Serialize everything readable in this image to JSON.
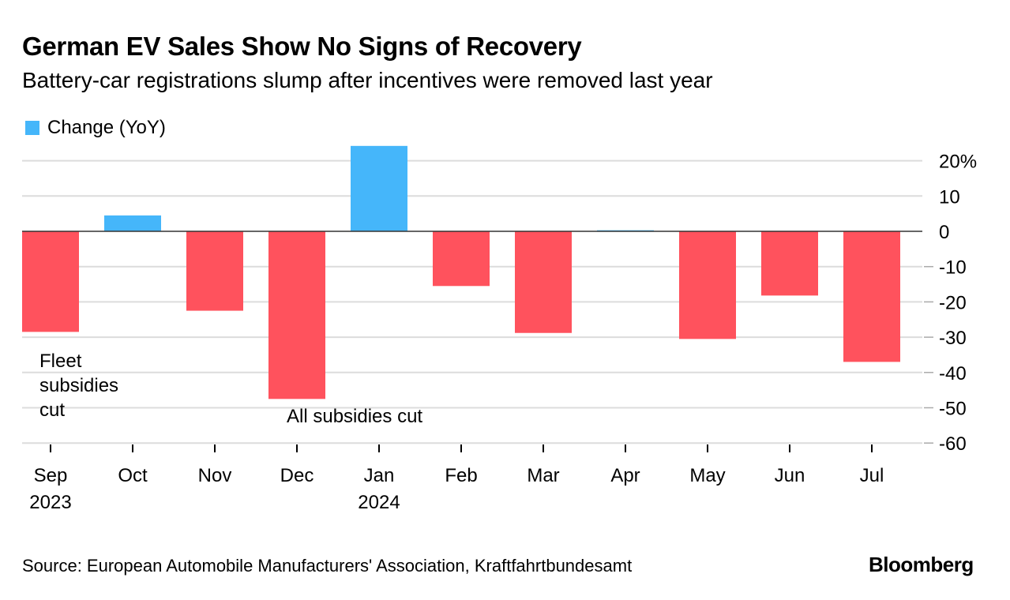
{
  "chart_data": {
    "type": "bar",
    "title": "German EV Sales Show No Signs of Recovery",
    "subtitle": "Battery-car registrations slump after incentives were removed last year",
    "legend": [
      {
        "label": "Change (YoY)",
        "color": "#45b6fa"
      }
    ],
    "categories": [
      "Sep",
      "Oct",
      "Nov",
      "Dec",
      "Jan",
      "Feb",
      "Mar",
      "Apr",
      "May",
      "Jun",
      "Jul"
    ],
    "year_labels": [
      "2023",
      "",
      "",
      "",
      "2024",
      "",
      "",
      "",
      "",
      "",
      ""
    ],
    "series": [
      {
        "name": "Change (YoY)",
        "values": [
          -28.5,
          4.5,
          -22.5,
          -47.5,
          24.2,
          -15.5,
          -28.8,
          0.3,
          -30.5,
          -18.2,
          -37
        ]
      }
    ],
    "ylim": [
      -60,
      24
    ],
    "y_ticks": [
      20,
      10,
      0,
      -10,
      -20,
      -30,
      -40,
      -50,
      -60
    ],
    "y_tick_labels": [
      "20%",
      "10",
      "0",
      "-10",
      "-20",
      "-30",
      "-40",
      "-50",
      "-60"
    ],
    "positive_color": "#45b6fa",
    "negative_color": "#ff525d",
    "annotations": [
      {
        "category": "Sep",
        "lines": [
          "Fleet",
          "subsidies",
          "cut"
        ]
      },
      {
        "category": "Dec",
        "lines": [
          "All subsidies cut"
        ]
      }
    ]
  },
  "source": "Source: European Automobile Manufacturers' Association, Kraftfahrtbundesamt",
  "brand": "Bloomberg"
}
